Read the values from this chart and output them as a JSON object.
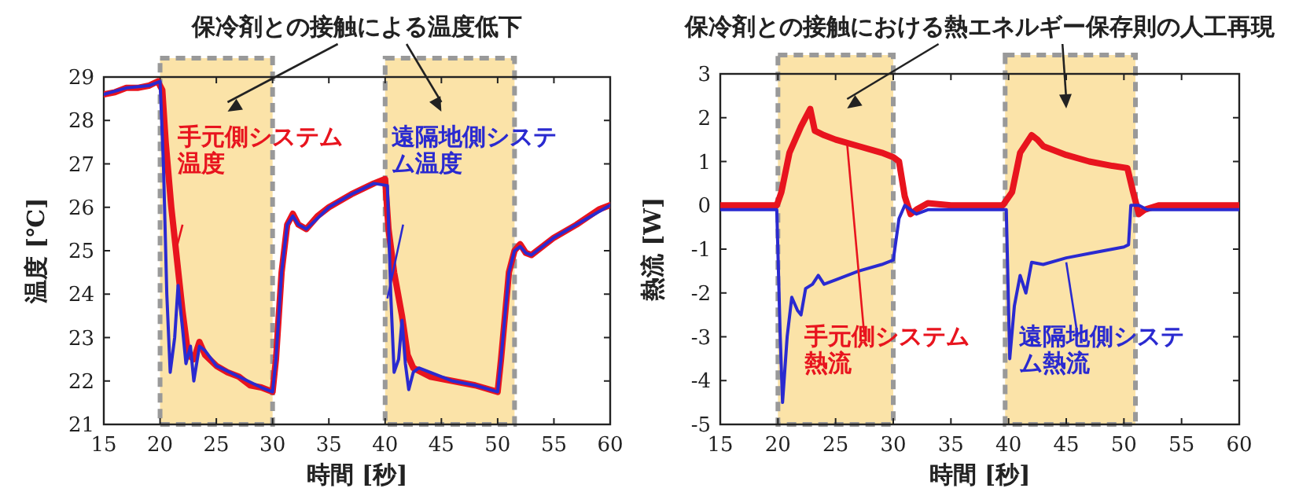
{
  "chart_data": [
    {
      "type": "line",
      "title": "保冷剤との接触による温度低下",
      "xlabel": "時間 [秒]",
      "ylabel": "温度 [℃]",
      "xlim": [
        15,
        60
      ],
      "ylim": [
        21,
        29
      ],
      "xticks": [
        15,
        20,
        25,
        30,
        35,
        40,
        45,
        50,
        55,
        60
      ],
      "yticks": [
        21,
        22,
        23,
        24,
        25,
        26,
        27,
        28,
        29
      ],
      "bands": [
        {
          "axis": "x",
          "from": 20,
          "to": 30,
          "color": "#fbe3a8"
        },
        {
          "axis": "x",
          "from": 40,
          "to": 51.5,
          "color": "#fbe3a8"
        }
      ],
      "series": [
        {
          "name": "手元側システム温度",
          "color": "#e8141e",
          "x": [
            15,
            16,
            17,
            18,
            19,
            19.8,
            20.2,
            20.5,
            21,
            21.5,
            22,
            22.5,
            23,
            23.5,
            24,
            25,
            26,
            27,
            28,
            29,
            30,
            30.3,
            30.8,
            31.3,
            31.8,
            32.3,
            33,
            34,
            35,
            37,
            39,
            40,
            40.3,
            40.8,
            41.5,
            42,
            42.5,
            44,
            46,
            48,
            50,
            50.3,
            51,
            51.5,
            52,
            52.5,
            53,
            55,
            57,
            59,
            60
          ],
          "values": [
            28.6,
            28.65,
            28.75,
            28.75,
            28.8,
            28.9,
            28.7,
            27.5,
            26,
            24.8,
            23.6,
            22.6,
            22.5,
            22.9,
            22.6,
            22.35,
            22.2,
            22.1,
            21.9,
            21.85,
            21.75,
            22.5,
            24.5,
            25.6,
            25.85,
            25.6,
            25.5,
            25.8,
            26,
            26.3,
            26.55,
            26.65,
            25.5,
            24.5,
            23.5,
            22.6,
            22.3,
            22.1,
            22,
            21.9,
            21.75,
            22.5,
            24.5,
            25,
            25.15,
            24.95,
            24.9,
            25.3,
            25.6,
            25.95,
            26.05
          ]
        },
        {
          "name": "遠隔地側システム温度",
          "color": "#2a2ad0",
          "x": [
            15,
            17,
            19,
            20,
            20.3,
            20.6,
            20.9,
            21.3,
            21.6,
            22,
            22.3,
            22.7,
            23,
            23.5,
            24,
            25,
            27,
            29,
            30,
            30.3,
            30.8,
            31.3,
            31.8,
            32.3,
            33,
            35,
            37,
            39,
            40.2,
            40.5,
            40.8,
            41.2,
            41.5,
            41.8,
            42.1,
            42.5,
            43,
            46,
            48,
            50,
            50.3,
            51,
            51.5,
            52,
            52.5,
            53,
            55,
            57,
            60
          ],
          "values": [
            28.6,
            28.75,
            28.8,
            28.9,
            27,
            24,
            22.2,
            23,
            24.2,
            23.2,
            22.4,
            22.8,
            22,
            22.8,
            22.7,
            22.35,
            22.1,
            21.85,
            21.75,
            22.5,
            24.5,
            25.6,
            25.8,
            25.6,
            25.5,
            26,
            26.3,
            26.55,
            26.5,
            24,
            22.2,
            22.5,
            23.4,
            22.4,
            21.8,
            22.2,
            22.3,
            22,
            21.9,
            21.75,
            22.5,
            24.5,
            25,
            25.1,
            24.95,
            24.9,
            25.3,
            25.6,
            26.05
          ]
        }
      ]
    },
    {
      "type": "line",
      "title": "保冷剤との接触における熱エネルギー保存則の人工再現",
      "xlabel": "時間 [秒]",
      "ylabel": "熱流 [W]",
      "xlim": [
        15,
        60
      ],
      "ylim": [
        -5,
        3
      ],
      "xticks": [
        15,
        20,
        25,
        30,
        35,
        40,
        45,
        50,
        55,
        60
      ],
      "yticks": [
        -5,
        -4,
        -3,
        -2,
        -1,
        0,
        1,
        2,
        3
      ],
      "bands": [
        {
          "axis": "x",
          "from": 20,
          "to": 30,
          "color": "#fbe3a8"
        },
        {
          "axis": "x",
          "from": 39.7,
          "to": 51,
          "color": "#fbe3a8"
        }
      ],
      "series": [
        {
          "name": "手元側システム熱流",
          "color": "#e8141e",
          "x": [
            15,
            17,
            19,
            19.9,
            20.3,
            21,
            22,
            22.8,
            23.2,
            24,
            25,
            27,
            29,
            30,
            30.5,
            31,
            31.5,
            32,
            33,
            35,
            37,
            39.5,
            40.3,
            41,
            42,
            42.5,
            43,
            45,
            47,
            49,
            50.3,
            50.8,
            51.3,
            51.8,
            53,
            55,
            58,
            60
          ],
          "values": [
            0,
            0,
            0,
            0,
            0.3,
            1.2,
            1.8,
            2.2,
            1.7,
            1.6,
            1.5,
            1.35,
            1.2,
            1.1,
            1,
            0.2,
            -0.2,
            -0.1,
            0.05,
            0,
            0,
            0,
            0.3,
            1.2,
            1.6,
            1.5,
            1.35,
            1.15,
            1,
            0.9,
            0.85,
            0.3,
            -0.2,
            -0.1,
            0,
            0,
            0,
            0
          ]
        },
        {
          "name": "遠隔地側システム熱流",
          "color": "#2a2ad0",
          "x": [
            15,
            19.9,
            20.2,
            20.4,
            20.8,
            21.2,
            21.7,
            22,
            22.4,
            23,
            23.5,
            24,
            25,
            27,
            29,
            30,
            30.5,
            31,
            31.5,
            32,
            33,
            39.8,
            40.1,
            40.5,
            41,
            41.5,
            42,
            43,
            45,
            47,
            50,
            50.4,
            50.6,
            51.3,
            52,
            60
          ],
          "values": [
            -0.1,
            -0.1,
            -3,
            -4.5,
            -3,
            -2.1,
            -2.4,
            -2.5,
            -1.9,
            -1.8,
            -1.6,
            -1.8,
            -1.7,
            -1.5,
            -1.35,
            -1.25,
            -0.3,
            0,
            -0.1,
            -0.2,
            -0.1,
            -0.1,
            -3.5,
            -2.3,
            -1.6,
            -2,
            -1.3,
            -1.35,
            -1.2,
            -1.1,
            -0.95,
            -0.9,
            0,
            0,
            -0.1,
            -0.1
          ]
        }
      ]
    }
  ]
}
